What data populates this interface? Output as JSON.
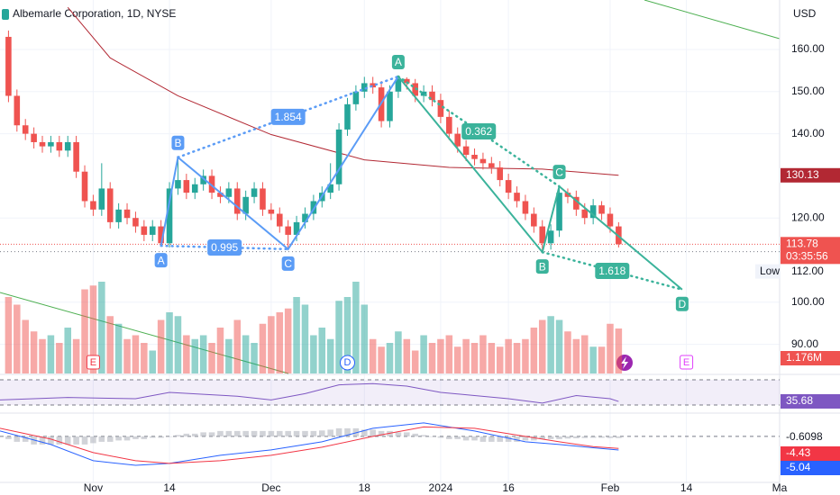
{
  "chart_data": {
    "type": "candlestick",
    "title": "Albemarle Corporation, 1D, NYSE",
    "currency": "USD",
    "xlim": [
      -1,
      91
    ],
    "xticks": [
      {
        "value": 10,
        "label": "Nov"
      },
      {
        "value": 19,
        "label": "14"
      },
      {
        "value": 31,
        "label": "Dec"
      },
      {
        "value": 42,
        "label": "18"
      },
      {
        "value": 51,
        "label": "2024"
      },
      {
        "value": 59,
        "label": "16"
      },
      {
        "value": 71,
        "label": "Feb"
      },
      {
        "value": 80,
        "label": "14"
      },
      {
        "value": 91,
        "label": "Ma"
      }
    ],
    "ylim": [
      83.08,
      171.75
    ],
    "yticks": [
      {
        "value": 160,
        "label": "160.00"
      },
      {
        "value": 150,
        "label": "150.00"
      },
      {
        "value": 140,
        "label": "140.00"
      },
      {
        "value": 120,
        "label": "120.00"
      },
      {
        "value": 100,
        "label": "100.00"
      },
      {
        "value": 90,
        "label": "90.00"
      }
    ],
    "grid": true,
    "up_color": "#26a69a",
    "down_color": "#ef5350",
    "open": [
      163,
      149,
      142,
      140,
      138,
      137,
      138,
      136,
      138,
      131,
      124,
      122,
      127,
      119,
      122,
      120,
      118,
      116,
      118,
      114,
      127,
      129,
      126,
      128,
      130,
      126,
      125,
      127,
      121,
      125,
      127,
      122,
      121,
      118,
      116,
      119,
      121,
      124,
      126,
      128,
      141,
      147,
      150,
      152,
      151,
      143,
      150,
      153,
      152,
      149,
      150,
      148,
      144,
      140,
      137,
      135,
      134,
      133,
      132,
      129,
      126,
      124,
      121,
      118,
      114,
      117,
      126,
      125,
      122,
      120,
      123,
      121,
      118
    ],
    "high": [
      164.5,
      150.5,
      143.5,
      141.5,
      139.5,
      139.5,
      139.5,
      139.5,
      139.5,
      132.5,
      125.5,
      133,
      128.5,
      123.5,
      123.5,
      121.5,
      119.5,
      119.5,
      119.5,
      128.5,
      134.4,
      130.5,
      129.5,
      131.5,
      131.5,
      127.5,
      128.5,
      128.5,
      126.5,
      128.5,
      128.5,
      123.5,
      122.5,
      119.5,
      120.5,
      122.5,
      125.5,
      127.5,
      133,
      142.5,
      148.5,
      151.5,
      153.5,
      153.5,
      152.5,
      151.5,
      153.6,
      153.4,
      153,
      151.5,
      151.5,
      149.5,
      145.5,
      141.5,
      138.5,
      136.5,
      135.5,
      134.5,
      133.5,
      130.5,
      127.5,
      125.5,
      122.5,
      119.5,
      118.5,
      127.5,
      127,
      126.5,
      123.5,
      124.5,
      124,
      122.5,
      119
    ],
    "low": [
      147.5,
      140.5,
      138.5,
      136.5,
      135.5,
      135.5,
      134.5,
      134.5,
      129.5,
      122.5,
      120.5,
      120.5,
      117.5,
      117.5,
      118.5,
      116.5,
      114.5,
      114.5,
      113.4,
      113,
      125.5,
      124.5,
      124.5,
      126.5,
      124.5,
      123.5,
      123.5,
      119.5,
      119.5,
      123.5,
      120.5,
      119.5,
      116.5,
      112.6,
      114.5,
      117.5,
      119.5,
      122.5,
      124.5,
      126.5,
      139.5,
      145.5,
      148.5,
      149.5,
      141.5,
      141.5,
      148.5,
      150.5,
      147.5,
      147.5,
      146.5,
      142.5,
      138.5,
      135.5,
      133.5,
      132.5,
      131.5,
      130.5,
      127.5,
      124.5,
      122.5,
      119.5,
      116.5,
      111.9,
      112.5,
      115.5,
      123.5,
      120.5,
      118.5,
      118.5,
      119.5,
      116.5,
      113
    ],
    "close": [
      149,
      142,
      140,
      138,
      137,
      138,
      136,
      138,
      131,
      124,
      122,
      127,
      119,
      122,
      120,
      118,
      116,
      118,
      114,
      127,
      129,
      126,
      128,
      130,
      126,
      125,
      127,
      121,
      125,
      127,
      122,
      121,
      118,
      116,
      119,
      121,
      124,
      126,
      128,
      141,
      147,
      150,
      152,
      151,
      143,
      150,
      153,
      152,
      149,
      150,
      148,
      144,
      140,
      137,
      135,
      134,
      133,
      132,
      129,
      126,
      124,
      121,
      118,
      114,
      117,
      126,
      125,
      122,
      120,
      123,
      121,
      118,
      113.78
    ],
    "countdown": "03:35:56",
    "volume": {
      "values": [
        2.0,
        1.8,
        1.4,
        1.1,
        0.9,
        1.0,
        0.8,
        1.2,
        0.9,
        2.2,
        2.3,
        2.4,
        1.5,
        1.3,
        0.9,
        1.0,
        0.8,
        0.6,
        1.4,
        1.6,
        1.5,
        1.0,
        0.9,
        1.0,
        0.8,
        1.2,
        0.9,
        1.4,
        1.0,
        0.8,
        1.3,
        1.5,
        1.6,
        1.7,
        2.0,
        1.8,
        1.0,
        1.2,
        0.9,
        1.9,
        2.0,
        2.4,
        1.8,
        0.9,
        0.7,
        0.8,
        1.1,
        0.9,
        0.6,
        1.0,
        0.8,
        0.9,
        1.0,
        0.7,
        0.9,
        0.8,
        1.0,
        0.8,
        0.7,
        0.9,
        0.8,
        0.9,
        1.2,
        1.4,
        1.5,
        1.4,
        1.1,
        0.9,
        1.0,
        0.7,
        0.7,
        1.3,
        1.176
      ],
      "last_label": "1.176M"
    },
    "ma": {
      "color": "#b22833",
      "x": [
        7,
        12,
        20,
        31,
        42,
        52,
        63,
        72
      ],
      "values": [
        170,
        158,
        149,
        139.8,
        133.8,
        132,
        131.6,
        130.13
      ]
    },
    "low_line": {
      "label": "Low",
      "value": {
        "value": 112,
        "label": "112.00"
      }
    },
    "patterns": [
      {
        "color": "#5b9cf6",
        "points": [
          {
            "label": "A",
            "x": 18,
            "y": 113.4
          },
          {
            "label": "B",
            "x": 20,
            "y": 134.4
          },
          {
            "label": "C",
            "x": 33,
            "y": 112.6
          },
          {
            "label": null,
            "x": 46,
            "y": 153.6
          }
        ],
        "ratios": [
          0.995,
          1.854
        ]
      },
      {
        "color": "#3bb39b",
        "points": [
          {
            "label": "A",
            "x": 46,
            "y": 153.6
          },
          {
            "label": "B",
            "x": 63,
            "y": 111.9
          },
          {
            "label": "C",
            "x": 65,
            "y": 127.5
          },
          {
            "label": "D",
            "x": 79.5,
            "y": 103
          }
        ],
        "ratios": [
          0.362,
          1.618
        ]
      }
    ],
    "events": [
      {
        "x": 10,
        "label": "E",
        "color": "#f23645"
      },
      {
        "x": 40,
        "label": "D",
        "color": "#2962ff"
      },
      {
        "x": 80,
        "label": "E",
        "color": "#e040fb"
      }
    ],
    "rsi": {
      "color": "#7e57c2",
      "ylim": [
        18.6,
        78.6
      ],
      "bands": [
        30,
        70
      ],
      "x": [
        -1,
        3,
        7,
        11,
        15,
        19,
        23,
        27,
        31,
        35,
        39,
        43,
        47,
        51,
        55,
        59,
        63,
        67,
        71,
        72
      ],
      "values": [
        38,
        40,
        42,
        41,
        40,
        50,
        47,
        44,
        38,
        48,
        62,
        64,
        60,
        50,
        45,
        40,
        33,
        45,
        40,
        35.68
      ]
    },
    "macd": {
      "ylim": [
        -16.7,
        8.3
      ],
      "x": [
        -1,
        5,
        10,
        15,
        19,
        25,
        31,
        37,
        43,
        49,
        55,
        61,
        65,
        69,
        72
      ],
      "macd": {
        "color": "#2962ff",
        "values": [
          2,
          -3,
          -9,
          -10.7,
          -10,
          -7,
          -5,
          -2,
          3,
          5,
          2,
          -2,
          -3,
          -4.2,
          -5.04
        ]
      },
      "signal": {
        "color": "#f23645",
        "values": [
          3,
          -1,
          -6,
          -9,
          -10,
          -9,
          -7,
          -4,
          0,
          3.5,
          3,
          0,
          -2,
          -3.8,
          -4.43
        ]
      },
      "histogram": {
        "color": "#b2b5be",
        "values": [
          -1,
          -2,
          -2,
          -3,
          -3,
          -3,
          -3,
          -3,
          -3,
          -3,
          -2.5,
          -2,
          -2,
          -1.5,
          -1.5,
          -1,
          -1,
          -0.5,
          -0.5,
          0,
          0.5,
          1,
          1,
          1.5,
          1.5,
          2,
          2,
          2,
          2,
          2,
          2,
          2,
          2,
          2,
          2,
          2,
          2,
          2.2,
          2.5,
          3,
          3,
          3,
          2.5,
          2.5,
          2,
          2,
          1.5,
          1.5,
          1,
          0.5,
          0,
          -0.5,
          -1,
          -1,
          -1.5,
          -1.5,
          -2,
          -2,
          -2,
          -2,
          -2,
          -1.5,
          -1.5,
          -1,
          -1,
          -1,
          -0.8,
          -0.7,
          -0.6,
          -0.5,
          -0.5,
          -0.6,
          -0.6098
        ]
      }
    }
  }
}
